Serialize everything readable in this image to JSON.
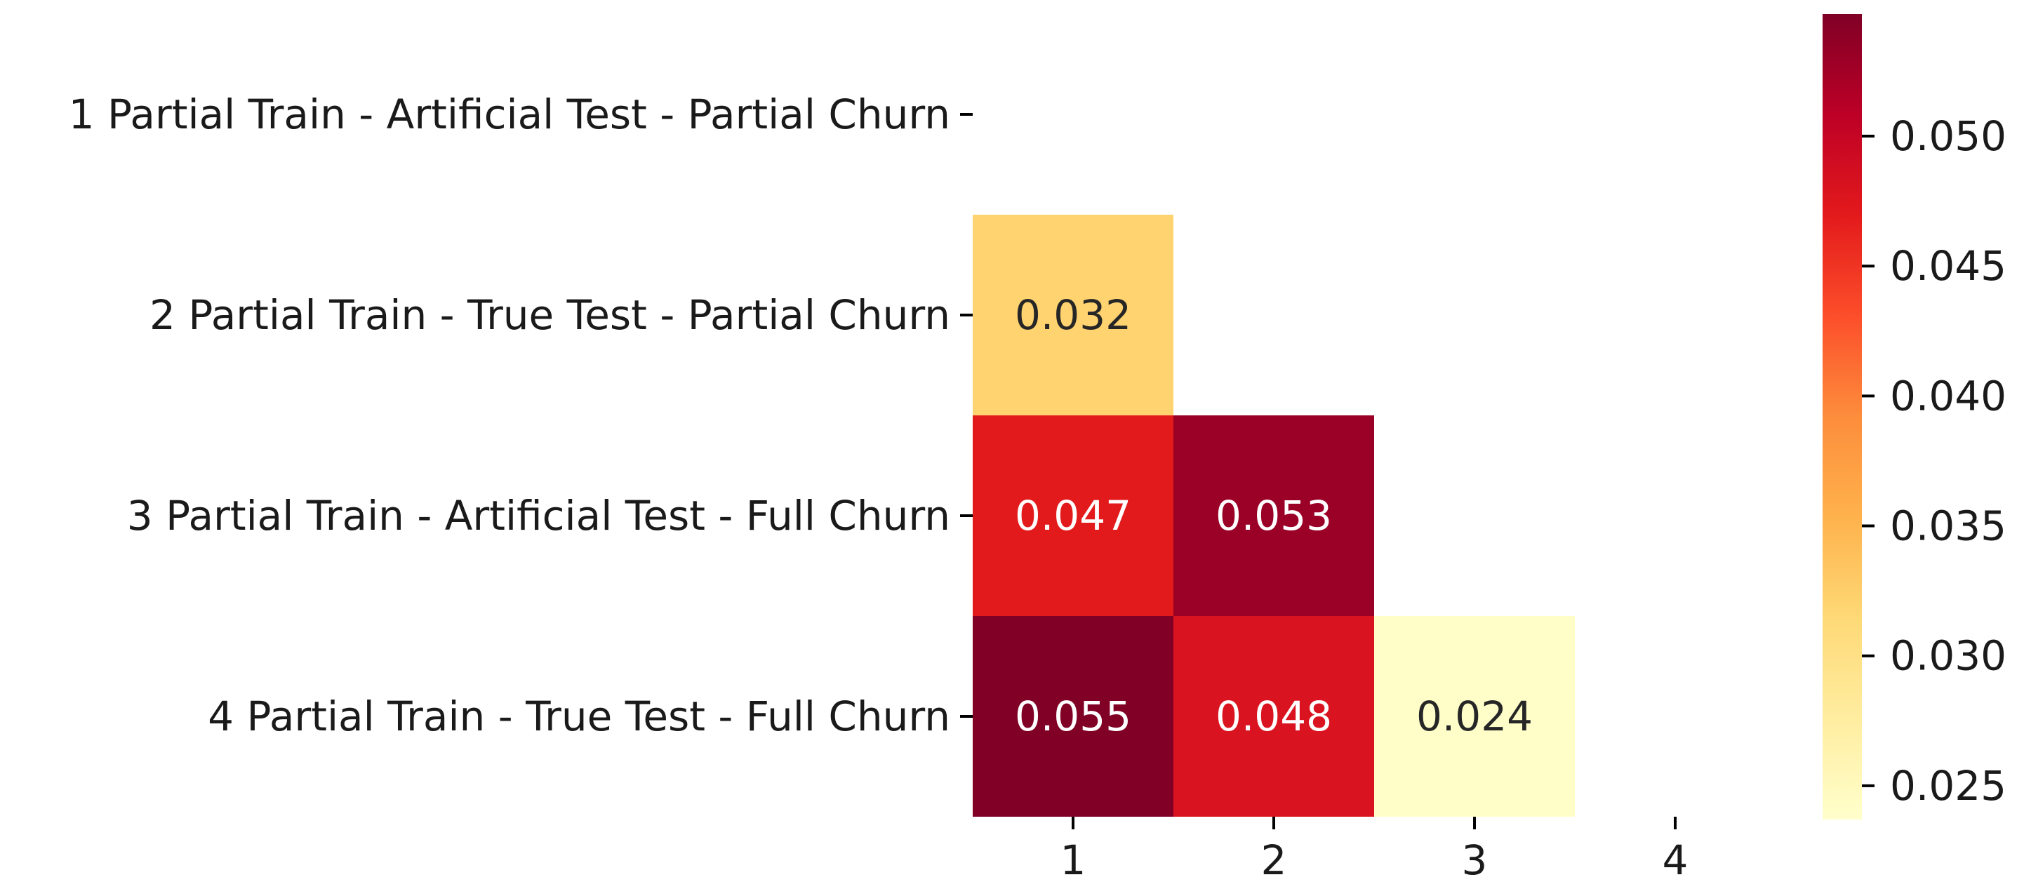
{
  "chart_data": {
    "type": "heatmap",
    "row_labels": [
      "1 Partial Train - Artificial Test - Partial Churn",
      "2 Partial Train - True Test - Partial Churn",
      "3 Partial Train - Artificial Test - Full Churn",
      "4 Partial Train - True Test - Full Churn"
    ],
    "col_labels": [
      "1",
      "2",
      "3",
      "4"
    ],
    "matrix": [
      [
        null,
        null,
        null,
        null
      ],
      [
        0.032,
        null,
        null,
        null
      ],
      [
        0.047,
        0.053,
        null,
        null
      ],
      [
        0.055,
        0.048,
        0.024,
        null
      ]
    ],
    "cell_labels": [
      [
        null,
        null,
        null,
        null
      ],
      [
        "0.032",
        null,
        null,
        null
      ],
      [
        "0.047",
        "0.053",
        null,
        null
      ],
      [
        "0.055",
        "0.048",
        "0.024",
        null
      ]
    ],
    "colormap": "YlOrRd",
    "vmin": 0.0237,
    "vmax": 0.0547,
    "colorbar_ticks": [
      0.025,
      0.03,
      0.035,
      0.04,
      0.045,
      0.05
    ],
    "colorbar_tick_labels": [
      "0.025",
      "0.030",
      "0.035",
      "0.040",
      "0.045",
      "0.050"
    ],
    "title": "",
    "xlabel": "",
    "ylabel": ""
  }
}
